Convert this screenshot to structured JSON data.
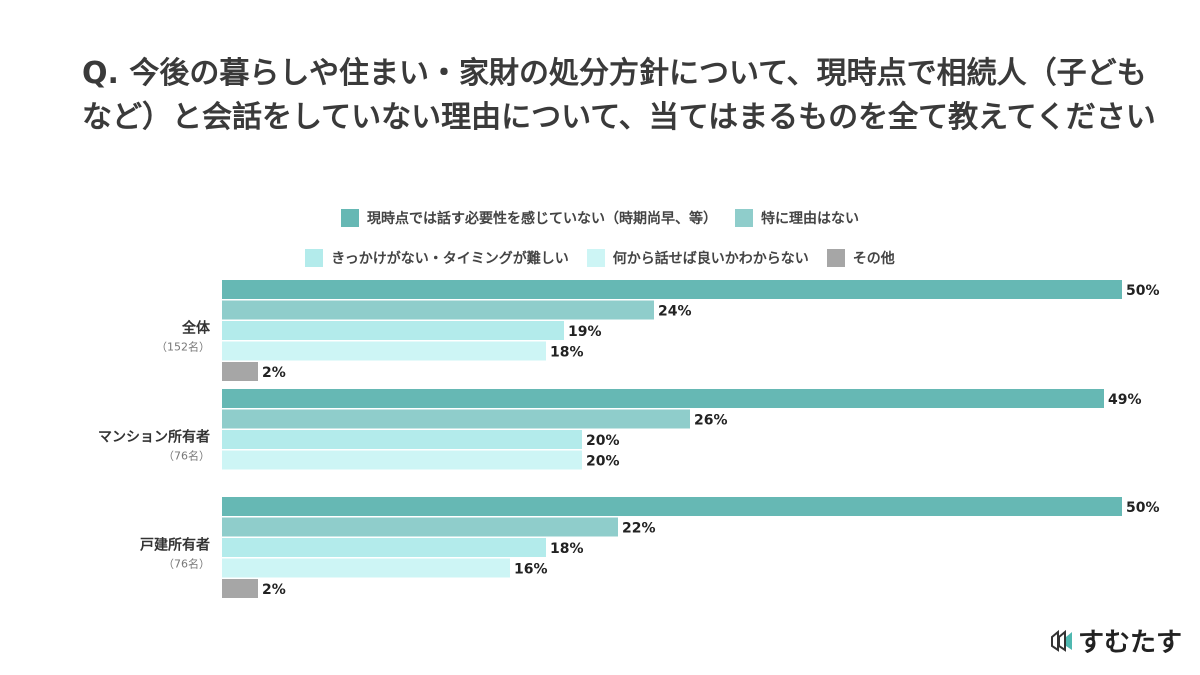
{
  "chart_data": {
    "type": "bar",
    "orientation": "horizontal",
    "title": "Q. 今後の暮らしや住まい・家財の処分方針について、現時点で相続人（子どもなど）と会話をしていない理由について、当てはまるものを全て教えてください",
    "categories": [
      {
        "name": "全体",
        "sub": "（152名）"
      },
      {
        "name": "マンション所有者",
        "sub": "（76名）"
      },
      {
        "name": "戸建所有者",
        "sub": "（76名）"
      }
    ],
    "series": [
      {
        "name": "現時点では話す必要性を感じていない（時期尚早、等）",
        "color": "#66b8b4",
        "values": [
          50,
          49,
          50
        ]
      },
      {
        "name": "特に理由はない",
        "color": "#8fcdcb",
        "values": [
          24,
          26,
          22
        ]
      },
      {
        "name": "きっかけがない・タイミングが難しい",
        "color": "#b3ebeb",
        "values": [
          19,
          20,
          18
        ]
      },
      {
        "name": "何から話せば良いかわからない",
        "color": "#cdf5f5",
        "values": [
          18,
          20,
          16
        ]
      },
      {
        "name": "その他",
        "color": "#a6a6a6",
        "values": [
          2,
          null,
          2
        ]
      }
    ],
    "value_suffix": "%",
    "xlim": [
      0,
      50
    ],
    "legend_position": "top",
    "grid": false
  },
  "brand": "すむたす"
}
